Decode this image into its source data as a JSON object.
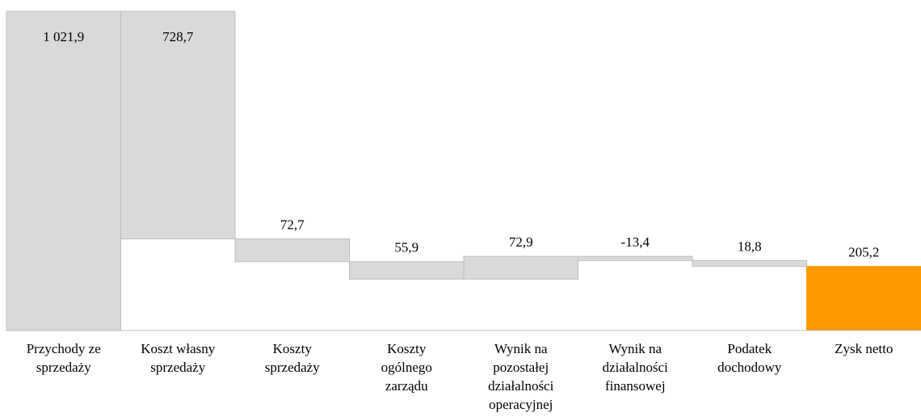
{
  "chart_data": {
    "type": "waterfall",
    "categories": [
      "Przychody ze sprzedaży",
      "Koszt własny sprzedaży",
      "Koszty sprzedaży",
      "Koszty ogólnego zarządu",
      "Wynik na pozostałej działalności operacyjnej",
      "Wynik na działalności finansowej",
      "Podatek dochodowy",
      "Zysk netto"
    ],
    "values": [
      1021.9,
      -728.7,
      -72.7,
      -55.9,
      72.9,
      -13.4,
      -18.8,
      205.2
    ],
    "value_labels": [
      "1 021,9",
      "728,7",
      "72,7",
      "55,9",
      "72,9",
      "-13,4",
      "18,8",
      "205,2"
    ],
    "colors": [
      "#d9d9d9",
      "#d9d9d9",
      "#d9d9d9",
      "#d9d9d9",
      "#d9d9d9",
      "#d9d9d9",
      "#d9d9d9",
      "#ff9900"
    ],
    "ylim": [
      0,
      1050
    ]
  }
}
